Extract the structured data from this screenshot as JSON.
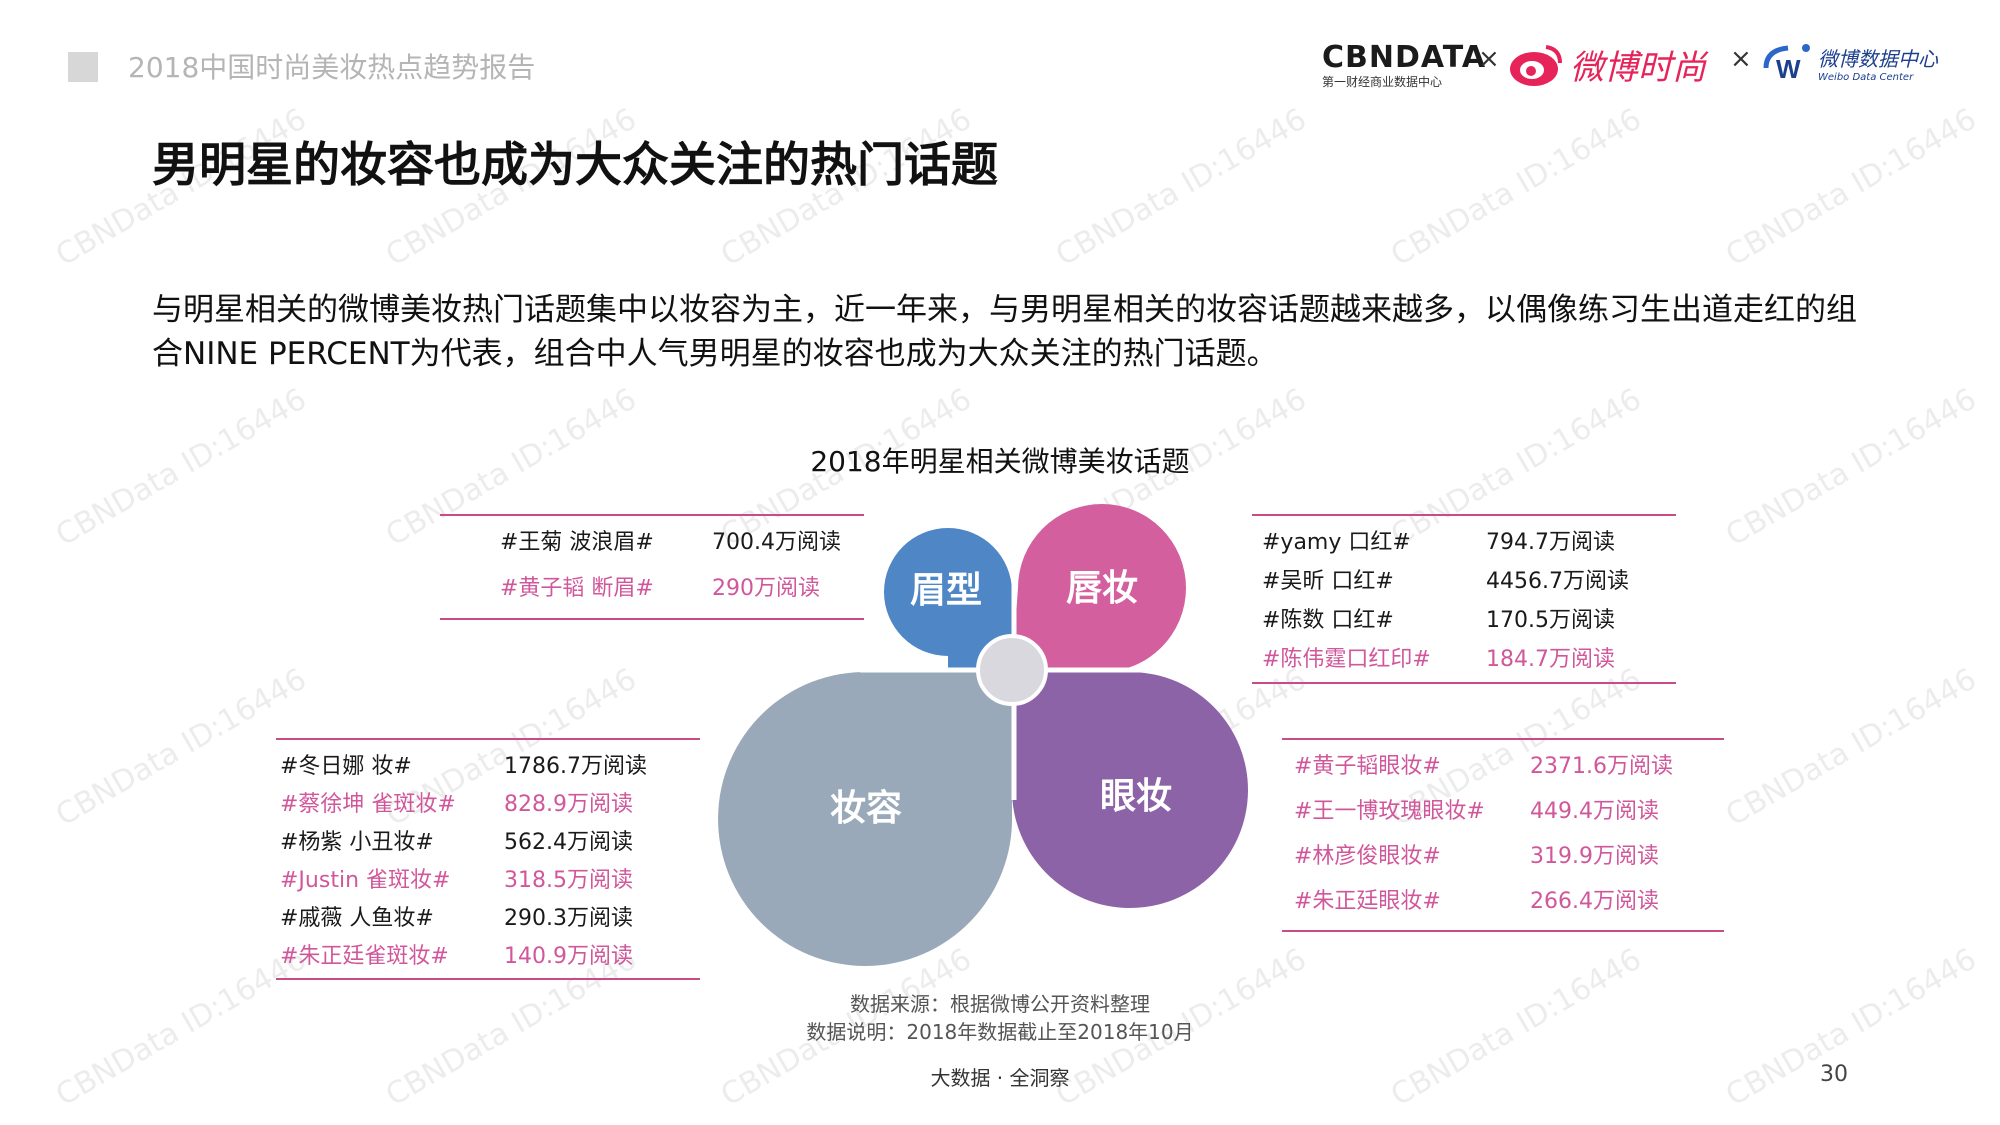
{
  "header": {
    "report_title": "2018中国时尚美妆热点趋势报告",
    "logos": {
      "cbndata": "CBNDATA",
      "cbndata_sub": "第一财经商业数据中心",
      "times": "×",
      "weibo_fashion": "微博时尚",
      "weibo_data": "微博数据中心",
      "weibo_data_en": "Weibo Data Center"
    }
  },
  "page_title": "男明星的妆容也成为大众关注的热门话题",
  "intro": "与明星相关的微博美妆热门话题集中以妆容为主，近一年来，与男明星相关的妆容话题越来越多，以偶像练习生出道走红的组合NINE PERCENT为代表，组合中人气男明星的妆容也成为大众关注的热门话题。",
  "diagram": {
    "title": "2018年明星相关微博美妆话题",
    "petals": {
      "brow": {
        "label": "眉型",
        "color": "#4f86c6"
      },
      "lip": {
        "label": "唇妆",
        "color": "#d35f9e"
      },
      "makeup": {
        "label": "妆容",
        "color": "#9aa9ba"
      },
      "eye": {
        "label": "眼妆",
        "color": "#8d63a8"
      },
      "center_color": "#d8d8de"
    },
    "tables": {
      "brow": [
        {
          "topic": "#王菊 波浪眉#",
          "reads": "700.4万阅读",
          "tone": "black"
        },
        {
          "topic": "#黄子韬 断眉#",
          "reads": "290万阅读",
          "tone": "pink"
        }
      ],
      "lip": [
        {
          "topic": "#yamy 口红#",
          "reads": "794.7万阅读",
          "tone": "black"
        },
        {
          "topic": "#吴昕 口红#",
          "reads": "4456.7万阅读",
          "tone": "black"
        },
        {
          "topic": "#陈数 口红#",
          "reads": "170.5万阅读",
          "tone": "black"
        },
        {
          "topic": "#陈伟霆口红印#",
          "reads": "184.7万阅读",
          "tone": "pink"
        }
      ],
      "makeup": [
        {
          "topic": "#冬日娜 妆#",
          "reads": "1786.7万阅读",
          "tone": "black"
        },
        {
          "topic": "#蔡徐坤 雀斑妆#",
          "reads": "828.9万阅读",
          "tone": "pink"
        },
        {
          "topic": "#杨紫 小丑妆#",
          "reads": "562.4万阅读",
          "tone": "black"
        },
        {
          "topic": "#Justin 雀斑妆#",
          "reads": "318.5万阅读",
          "tone": "pink"
        },
        {
          "topic": "#戚薇 人鱼妆#",
          "reads": "290.3万阅读",
          "tone": "black"
        },
        {
          "topic": "#朱正廷雀斑妆#",
          "reads": "140.9万阅读",
          "tone": "pink"
        }
      ],
      "eye": [
        {
          "topic": "#黄子韬眼妆#",
          "reads": "2371.6万阅读",
          "tone": "pink"
        },
        {
          "topic": "#王一博玫瑰眼妆#",
          "reads": "449.4万阅读",
          "tone": "pink"
        },
        {
          "topic": "#林彦俊眼妆#",
          "reads": "319.9万阅读",
          "tone": "pink"
        },
        {
          "topic": "#朱正廷眼妆#",
          "reads": "266.4万阅读",
          "tone": "pink"
        }
      ]
    }
  },
  "footer": {
    "source": "数据来源：根据微博公开资料整理",
    "note": "数据说明：2018年数据截止至2018年10月",
    "slogan": "大数据 · 全洞察",
    "page_number": "30"
  },
  "watermark": "CBNData ID:16446"
}
